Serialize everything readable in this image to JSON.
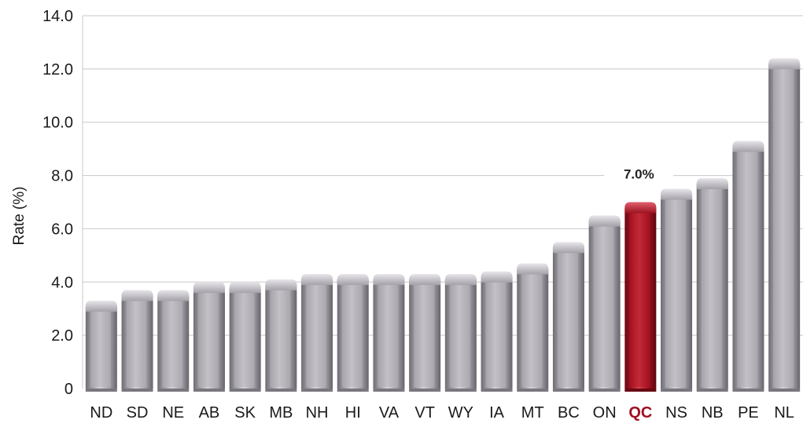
{
  "chart_data": {
    "type": "bar",
    "title": "",
    "xlabel": "",
    "ylabel": "Rate (%)",
    "ylim": [
      0,
      14
    ],
    "y_ticks": [
      "0",
      "2.0",
      "4.0",
      "6.0",
      "8.0",
      "10.0",
      "12.0",
      "14.0"
    ],
    "grid": true,
    "categories": [
      "ND",
      "SD",
      "NE",
      "AB",
      "SK",
      "MB",
      "NH",
      "HI",
      "VA",
      "VT",
      "WY",
      "IA",
      "MT",
      "BC",
      "ON",
      "QC",
      "NS",
      "NB",
      "PE",
      "NL"
    ],
    "values": [
      3.3,
      3.7,
      3.7,
      4.0,
      4.0,
      4.1,
      4.3,
      4.3,
      4.3,
      4.3,
      4.3,
      4.4,
      4.7,
      5.5,
      6.5,
      7.0,
      7.5,
      7.9,
      9.3,
      12.4
    ],
    "highlight": {
      "category": "QC",
      "label": "7.0%"
    },
    "colors": {
      "bar": "#a9a7ad",
      "bar_dark": "#6e6c72",
      "bar_light": "#dcdadf",
      "highlight": "#a0101e",
      "highlight_dark": "#6a0812",
      "highlight_light": "#d84a55",
      "grid": "#c8c8c8"
    }
  }
}
